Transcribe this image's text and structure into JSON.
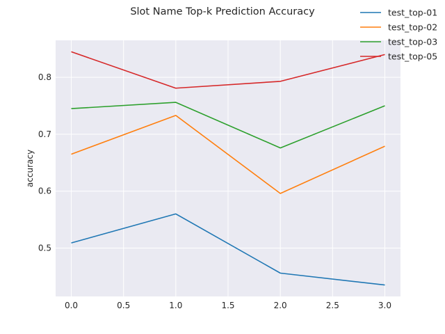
{
  "chart_data": {
    "type": "line",
    "title": "Slot Name Top-k Prediction Accuracy",
    "xlabel": "",
    "ylabel": "accuracy",
    "x": [
      0,
      1,
      2,
      3
    ],
    "xlim": [
      -0.15,
      3.15
    ],
    "ylim": [
      0.415,
      0.865
    ],
    "xticks": [
      0.0,
      0.5,
      1.0,
      1.5,
      2.0,
      2.5,
      3.0
    ],
    "xtick_labels": [
      "0.0",
      "0.5",
      "1.0",
      "1.5",
      "2.0",
      "2.5",
      "3.0"
    ],
    "yticks": [
      0.5,
      0.6,
      0.7,
      0.8
    ],
    "ytick_labels": [
      "0.5",
      "0.6",
      "0.7",
      "0.8"
    ],
    "grid": true,
    "legend_position": "top-right",
    "series": [
      {
        "name": "test_top-01",
        "color": "#1f77b4",
        "values": [
          0.509,
          0.56,
          0.456,
          0.435
        ]
      },
      {
        "name": "test_top-02",
        "color": "#ff7f0e",
        "values": [
          0.665,
          0.733,
          0.596,
          0.679
        ]
      },
      {
        "name": "test_top-03",
        "color": "#2ca02c",
        "values": [
          0.745,
          0.756,
          0.676,
          0.75
        ]
      },
      {
        "name": "test_top-05",
        "color": "#d62728",
        "values": [
          0.845,
          0.781,
          0.793,
          0.84
        ]
      }
    ]
  }
}
